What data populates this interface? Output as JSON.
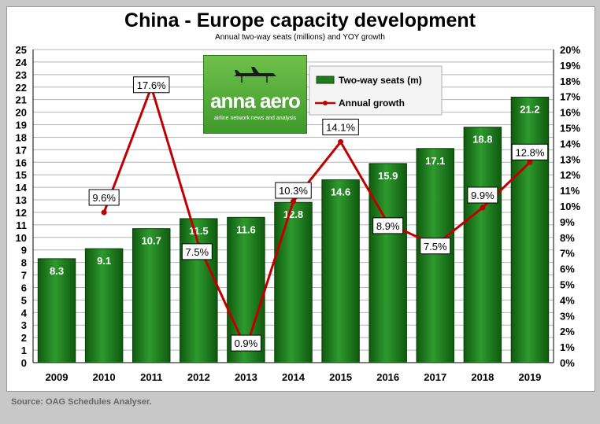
{
  "title": "China - Europe capacity development",
  "subtitle": "Annual two-way seats (millions) and YOY growth",
  "source": "Source: OAG Schedules Analyser.",
  "logo": {
    "brand": "anna aero",
    "tagline": "airline network news and analysis"
  },
  "colors": {
    "bar": "#1f7a1f",
    "bar_light": "#2e9a2e",
    "line": "#c00000"
  },
  "chart_data": {
    "type": "bar",
    "title": "China - Europe capacity development",
    "subtitle": "Annual two-way seats (millions) and YOY growth",
    "categories": [
      "2009",
      "2010",
      "2011",
      "2012",
      "2013",
      "2014",
      "2015",
      "2016",
      "2017",
      "2018",
      "2019"
    ],
    "series": [
      {
        "name": "Two-way seats (m)",
        "type": "bar",
        "axis": "left",
        "values": [
          8.3,
          9.1,
          10.7,
          11.5,
          11.6,
          12.8,
          14.6,
          15.9,
          17.1,
          18.8,
          21.2
        ],
        "labels": [
          "8.3",
          "9.1",
          "10.7",
          "11.5",
          "11.6",
          "12.8",
          "14.6",
          "15.9",
          "17.1",
          "18.8",
          "21.2"
        ]
      },
      {
        "name": "Annual growth",
        "type": "line",
        "axis": "right",
        "values": [
          null,
          9.6,
          17.6,
          7.5,
          0.9,
          10.3,
          14.1,
          8.9,
          7.5,
          9.9,
          12.8
        ],
        "labels": [
          "",
          "9.6%",
          "17.6%",
          "7.5%",
          "0.9%",
          "10.3%",
          "14.1%",
          "8.9%",
          "7.5%",
          "9.9%",
          "12.8%"
        ]
      }
    ],
    "ylim": [
      0,
      25
    ],
    "y2lim": [
      0,
      20
    ],
    "yticks": [
      "0",
      "1",
      "2",
      "3",
      "4",
      "5",
      "6",
      "7",
      "8",
      "9",
      "10",
      "11",
      "12",
      "13",
      "14",
      "15",
      "16",
      "17",
      "18",
      "19",
      "20",
      "21",
      "22",
      "23",
      "24",
      "25"
    ],
    "y2ticks": [
      "0%",
      "1%",
      "2%",
      "3%",
      "4%",
      "5%",
      "6%",
      "7%",
      "8%",
      "9%",
      "10%",
      "11%",
      "12%",
      "13%",
      "14%",
      "15%",
      "16%",
      "17%",
      "18%",
      "19%",
      "20%"
    ],
    "grid": true,
    "legend_position": "top-center"
  }
}
